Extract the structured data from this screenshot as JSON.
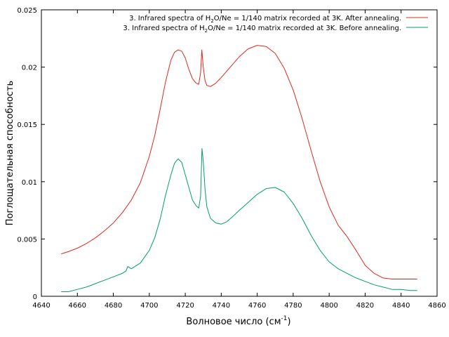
{
  "chart_data": {
    "type": "line",
    "title": "",
    "xlabel": "Волновое число (см",
    "xlabel_sup": "-1",
    "xlabel_end": ")",
    "ylabel": "Поглощательная способность",
    "xlim": [
      4640,
      4860
    ],
    "ylim": [
      0,
      0.025
    ],
    "xticks": [
      "4640",
      "4660",
      "4680",
      "4700",
      "4720",
      "4740",
      "4760",
      "4780",
      "4800",
      "4820",
      "4840",
      "4860"
    ],
    "yticks": [
      "0",
      "0.005",
      "0.01",
      "0.015",
      "0.02",
      "0.025"
    ],
    "grid": false,
    "legend_position": "top-right",
    "series": [
      {
        "name_parts": [
          "3. Infrared spectra of H",
          "2",
          "O/Ne = 1/140 matrix recorded at 3K. After annealing."
        ],
        "color": "#e0281e",
        "x": [
          4651,
          4655,
          4660,
          4665,
          4670,
          4675,
          4680,
          4685,
          4690,
          4695,
          4700,
          4703,
          4706,
          4709,
          4712,
          4714,
          4716,
          4718,
          4720,
          4722,
          4724,
          4726,
          4727.5,
          4728.5,
          4729.2,
          4730,
          4731,
          4732,
          4734,
          4737,
          4740,
          4745,
          4750,
          4755,
          4760,
          4765,
          4770,
          4775,
          4780,
          4785,
          4790,
          4795,
          4800,
          4805,
          4810,
          4815,
          4820,
          4825,
          4830,
          4835,
          4840,
          4845,
          4849
        ],
        "values": [
          0.0037,
          0.0039,
          0.0042,
          0.0046,
          0.0051,
          0.0057,
          0.0064,
          0.0073,
          0.0084,
          0.0099,
          0.0122,
          0.014,
          0.0163,
          0.0187,
          0.0206,
          0.0213,
          0.0215,
          0.0214,
          0.0208,
          0.0198,
          0.019,
          0.0186,
          0.0185,
          0.0195,
          0.0215,
          0.02,
          0.0188,
          0.0184,
          0.0183,
          0.0186,
          0.0191,
          0.02,
          0.0209,
          0.0216,
          0.0219,
          0.0218,
          0.0212,
          0.0199,
          0.018,
          0.0155,
          0.0127,
          0.01,
          0.0078,
          0.0062,
          0.0052,
          0.004,
          0.0027,
          0.002,
          0.0016,
          0.0015,
          0.0015,
          0.0015,
          0.0015
        ]
      },
      {
        "name_parts": [
          "3. Infrared spectra of H",
          "2",
          "O/Ne = 1/140 matrix recorded at 3K. Before annealing."
        ],
        "color": "#009e73",
        "x": [
          4651,
          4655,
          4660,
          4665,
          4670,
          4675,
          4680,
          4685,
          4687,
          4688,
          4689,
          4690,
          4695,
          4700,
          4703,
          4706,
          4709,
          4712,
          4714,
          4716,
          4718,
          4720,
          4722,
          4724,
          4726,
          4727.5,
          4728.5,
          4729.3,
          4730,
          4731,
          4732,
          4734,
          4737,
          4740,
          4743,
          4746,
          4750,
          4755,
          4760,
          4765,
          4770,
          4775,
          4780,
          4785,
          4790,
          4795,
          4800,
          4805,
          4810,
          4815,
          4820,
          4825,
          4830,
          4835,
          4840,
          4845,
          4849
        ],
        "values": [
          0.0004,
          0.0004,
          0.0006,
          0.0008,
          0.0011,
          0.0014,
          0.0017,
          0.002,
          0.0022,
          0.0026,
          0.0025,
          0.0024,
          0.0029,
          0.004,
          0.0051,
          0.0067,
          0.0088,
          0.0106,
          0.0116,
          0.012,
          0.0117,
          0.0106,
          0.0095,
          0.0084,
          0.0079,
          0.0077,
          0.0087,
          0.0129,
          0.0118,
          0.0093,
          0.0078,
          0.0068,
          0.0064,
          0.0063,
          0.0065,
          0.0069,
          0.0075,
          0.0082,
          0.0089,
          0.0094,
          0.0095,
          0.0091,
          0.0081,
          0.0068,
          0.0053,
          0.004,
          0.003,
          0.0024,
          0.002,
          0.0016,
          0.0013,
          0.001,
          0.0008,
          0.0006,
          0.0006,
          0.0005,
          0.0005
        ]
      }
    ]
  }
}
